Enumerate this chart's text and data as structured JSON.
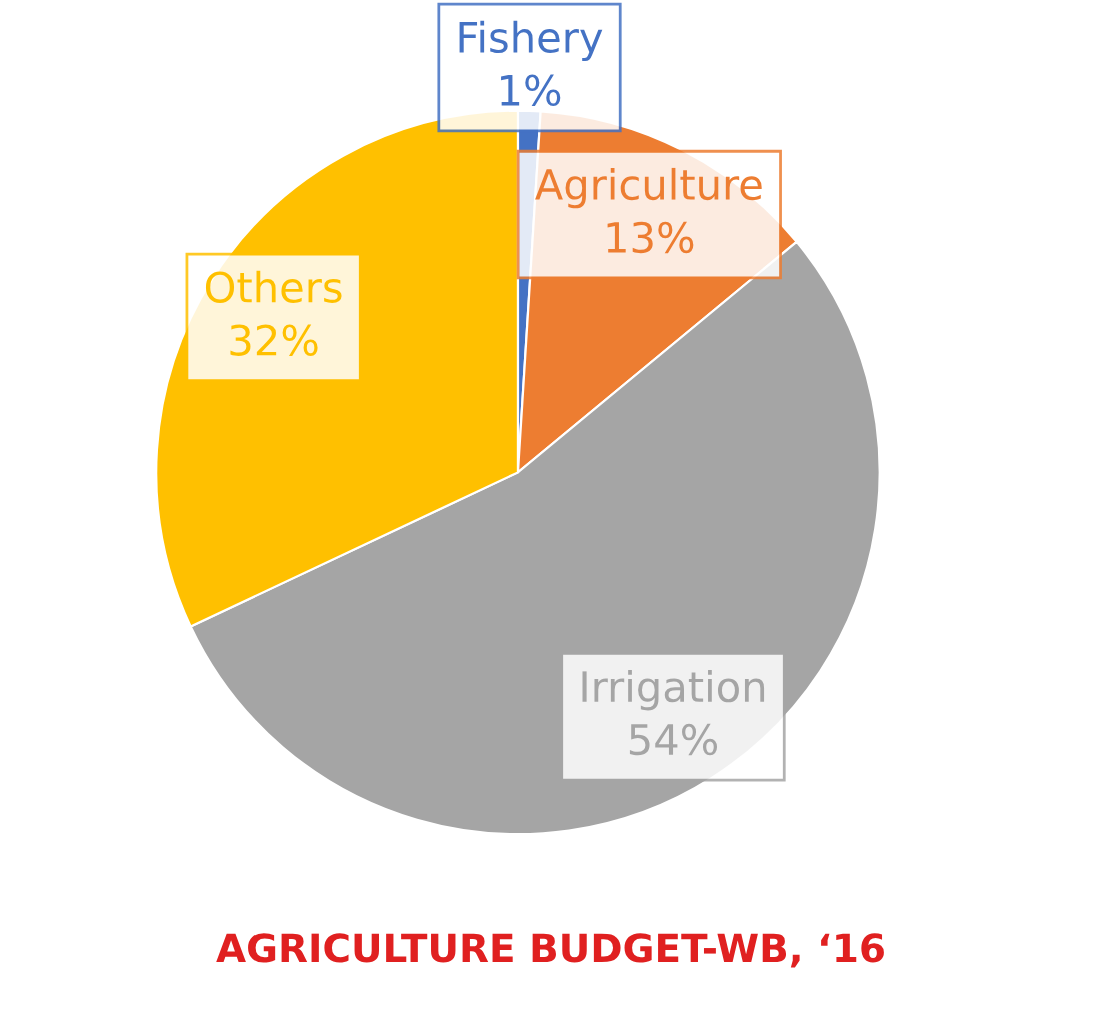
{
  "chart_data": {
    "type": "pie",
    "title": "AGRICULTURE BUDGET-WB, ‘16",
    "categories": [
      "Fishery",
      "Agriculture",
      "Irrigation",
      "Others"
    ],
    "values": [
      1,
      13,
      54,
      32
    ],
    "value_labels": [
      "1%",
      "13%",
      "54%",
      "32%"
    ],
    "colors": [
      "#4472c4",
      "#ed7d31",
      "#a5a5a5",
      "#ffc000"
    ]
  }
}
